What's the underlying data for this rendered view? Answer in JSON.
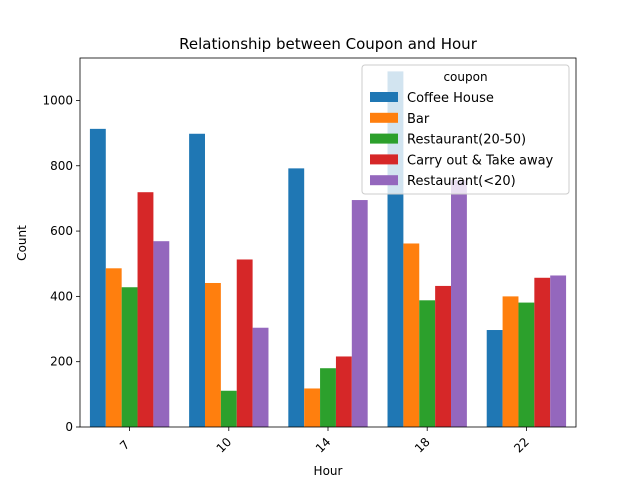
{
  "chart_data": {
    "type": "bar",
    "title": "Relationship between Coupon and Hour",
    "xlabel": "Hour",
    "ylabel": "Count",
    "categories": [
      "7",
      "10",
      "14",
      "18",
      "22"
    ],
    "ylim": [
      0,
      1130
    ],
    "yticks": [
      0,
      200,
      400,
      600,
      800,
      1000
    ],
    "grid": false,
    "legend": {
      "title": "coupon",
      "placement": "top-right"
    },
    "series": [
      {
        "name": "Coffee House",
        "color": "#1f77b4",
        "values": [
          913,
          898,
          792,
          1089,
          297
        ]
      },
      {
        "name": "Bar",
        "color": "#ff7f0e",
        "values": [
          486,
          441,
          118,
          562,
          400
        ]
      },
      {
        "name": "Restaurant(20-50)",
        "color": "#2ca02c",
        "values": [
          428,
          111,
          180,
          388,
          381
        ]
      },
      {
        "name": "Carry out & Take away",
        "color": "#d62728",
        "values": [
          719,
          513,
          216,
          432,
          457
        ]
      },
      {
        "name": "Restaurant(<20)",
        "color": "#9467bd",
        "values": [
          569,
          304,
          695,
          756,
          464
        ]
      }
    ]
  }
}
